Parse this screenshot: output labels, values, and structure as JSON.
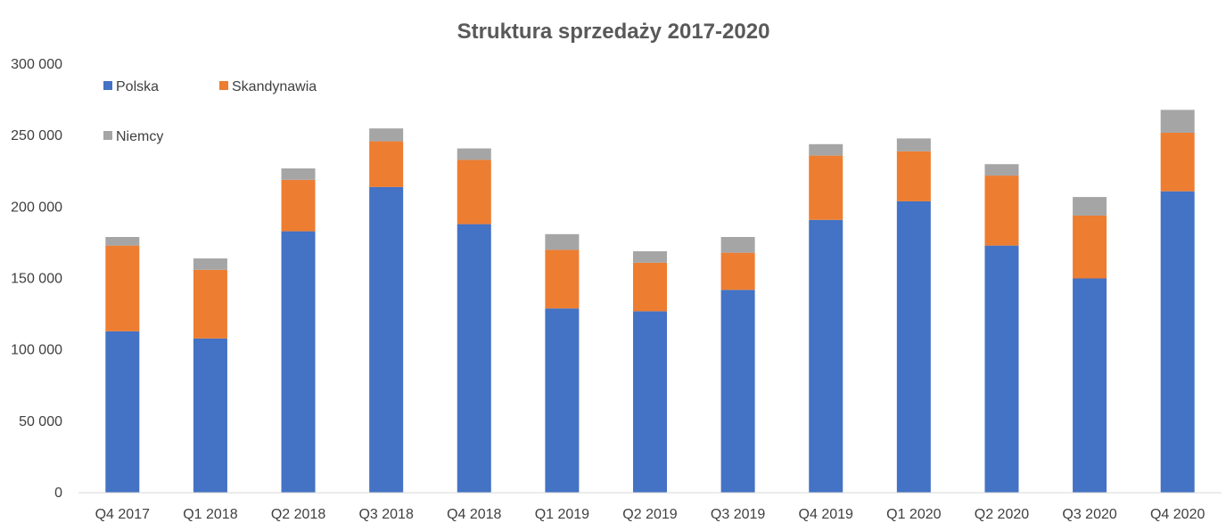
{
  "chart_data": {
    "type": "bar",
    "stacked": true,
    "title": "Struktura sprzedaży 2017-2020",
    "xlabel": "",
    "ylabel": "",
    "ylim": [
      0,
      300000
    ],
    "yticks": [
      0,
      50000,
      100000,
      150000,
      200000,
      250000,
      300000
    ],
    "ytick_labels": [
      "0",
      "50 000",
      "100 000",
      "150 000",
      "200 000",
      "250 000",
      "300 000"
    ],
    "grid": false,
    "legend_position": "top-left",
    "categories": [
      "Q4 2017",
      "Q1 2018",
      "Q2 2018",
      "Q3 2018",
      "Q4 2018",
      "Q1 2019",
      "Q2 2019",
      "Q3 2019",
      "Q4 2019",
      "Q1 2020",
      "Q2 2020",
      "Q3 2020",
      "Q4 2020"
    ],
    "series": [
      {
        "name": "Polska",
        "color": "#4472C4",
        "values": [
          113000,
          108000,
          183000,
          214000,
          188000,
          129000,
          127000,
          142000,
          191000,
          204000,
          173000,
          150000,
          211000
        ]
      },
      {
        "name": "Skandynawia",
        "color": "#ED7D31",
        "values": [
          60000,
          48000,
          36000,
          32000,
          45000,
          41000,
          34000,
          26000,
          45000,
          35000,
          49000,
          44000,
          41000
        ]
      },
      {
        "name": "Niemcy",
        "color": "#A5A5A5",
        "values": [
          6000,
          8000,
          8000,
          9000,
          8000,
          11000,
          8000,
          11000,
          8000,
          9000,
          8000,
          13000,
          16000
        ]
      }
    ]
  }
}
